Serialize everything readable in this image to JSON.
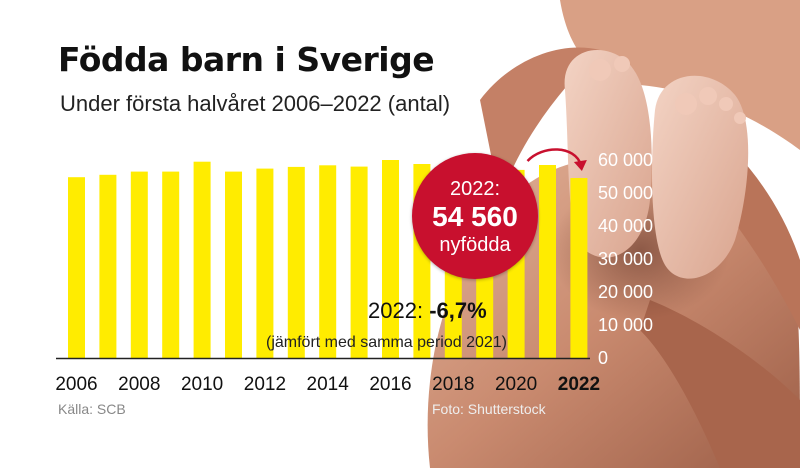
{
  "header": {
    "title": "Födda barn i Sverige",
    "subtitle": "Under första halvåret 2006–2022 (antal)"
  },
  "badge": {
    "line1": "2022:",
    "value": "54 560",
    "line3": "nyfödda",
    "color": "#c8102e"
  },
  "change": {
    "prefix": "2022:",
    "value": "-6,7%",
    "note": "(jämfört med samma period 2021)"
  },
  "footer": {
    "source": "Källa: SCB",
    "credit": "Foto: Shutterstock"
  },
  "chart_data": {
    "type": "bar",
    "categories": [
      "2006",
      "2007",
      "2008",
      "2009",
      "2010",
      "2011",
      "2012",
      "2013",
      "2014",
      "2015",
      "2016",
      "2017",
      "2018",
      "2019",
      "2020",
      "2021",
      "2022"
    ],
    "values": [
      54800,
      55500,
      56500,
      56500,
      59500,
      56500,
      57400,
      57900,
      58400,
      58000,
      60000,
      58800,
      58200,
      58400,
      57000,
      58500,
      54560
    ],
    "x_tick_labels": [
      "2006",
      "2008",
      "2010",
      "2012",
      "2014",
      "2016",
      "2018",
      "2020",
      "2022"
    ],
    "highlight_tick": "2022",
    "y_ticks": [
      "0",
      "10 000",
      "20 000",
      "30 000",
      "40 000",
      "50 000",
      "60 000"
    ],
    "ylim": [
      0,
      60000
    ],
    "ylabel": "",
    "xlabel": "",
    "bar_color": "#ffec00",
    "annotation_arrow_color": "#c8102e",
    "axis_position": "right"
  }
}
